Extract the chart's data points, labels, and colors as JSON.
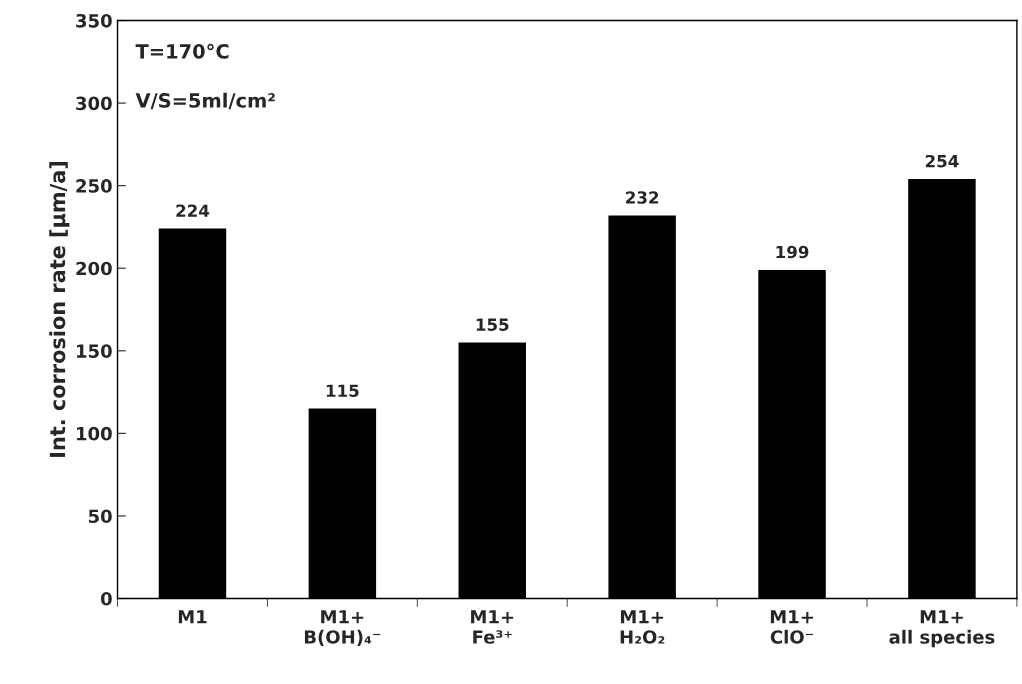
{
  "chart_data": {
    "type": "bar",
    "categories": [
      "M1",
      "M1+\nB(OH)₄⁻",
      "M1+\nFe³⁺",
      "M1+\nH₂O₂",
      "M1+\nClO⁻",
      "M1+\nall species"
    ],
    "values": [
      224,
      115,
      155,
      232,
      199,
      254
    ],
    "color": "#000000",
    "ylabel": "Int. corrosion rate [µm/a]",
    "ylim": [
      0,
      350
    ],
    "yticks": [
      0,
      50,
      100,
      150,
      200,
      250,
      300,
      350
    ],
    "data_labels": true,
    "annotations": [
      "T=170°C",
      "V/S=5ml/cm²"
    ]
  }
}
